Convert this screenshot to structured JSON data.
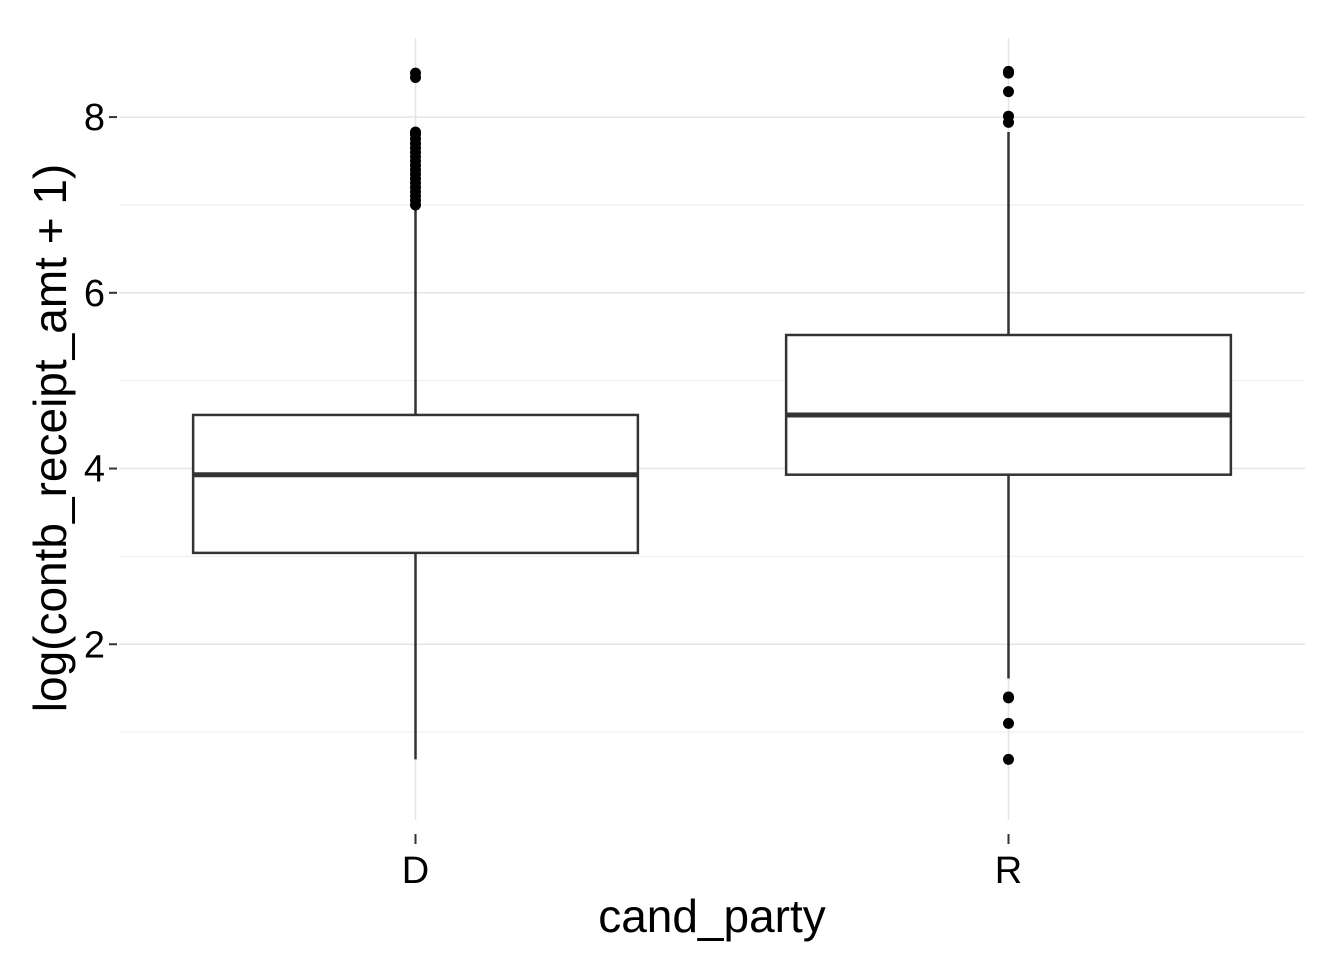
{
  "chart_data": {
    "type": "box",
    "title": "",
    "xlabel": "cand_party",
    "ylabel": "log(contb_receipt_amt + 1)",
    "categories": [
      "D",
      "R"
    ],
    "y_ticks": [
      2,
      4,
      6,
      8
    ],
    "y_tick_labels": [
      "2",
      "4",
      "6",
      "8"
    ],
    "ylim": [
      0.0,
      8.9
    ],
    "grid": true,
    "legend": "none",
    "boxes": [
      {
        "category": "D",
        "whisker_low": 0.69,
        "q1": 3.04,
        "median": 3.93,
        "q3": 4.61,
        "whisker_high": 6.95,
        "outliers": [
          7.0,
          7.05,
          7.1,
          7.15,
          7.2,
          7.25,
          7.3,
          7.35,
          7.4,
          7.45,
          7.5,
          7.55,
          7.6,
          7.65,
          7.7,
          7.75,
          7.8,
          7.83,
          8.45,
          8.5
        ]
      },
      {
        "category": "R",
        "whisker_low": 1.61,
        "q1": 3.93,
        "median": 4.61,
        "q3": 5.52,
        "whisker_high": 7.83,
        "outliers": [
          0.69,
          1.1,
          1.39,
          1.4,
          7.94,
          8.01,
          8.29,
          8.5,
          8.52
        ]
      }
    ],
    "colors": {
      "box_fill": "#ffffff",
      "box_stroke": "#333333",
      "median": "#333333",
      "outlier": "#000000",
      "grid_major": "#e5e5e5",
      "grid_minor": "#f2f2f2",
      "tick": "#333333"
    }
  }
}
